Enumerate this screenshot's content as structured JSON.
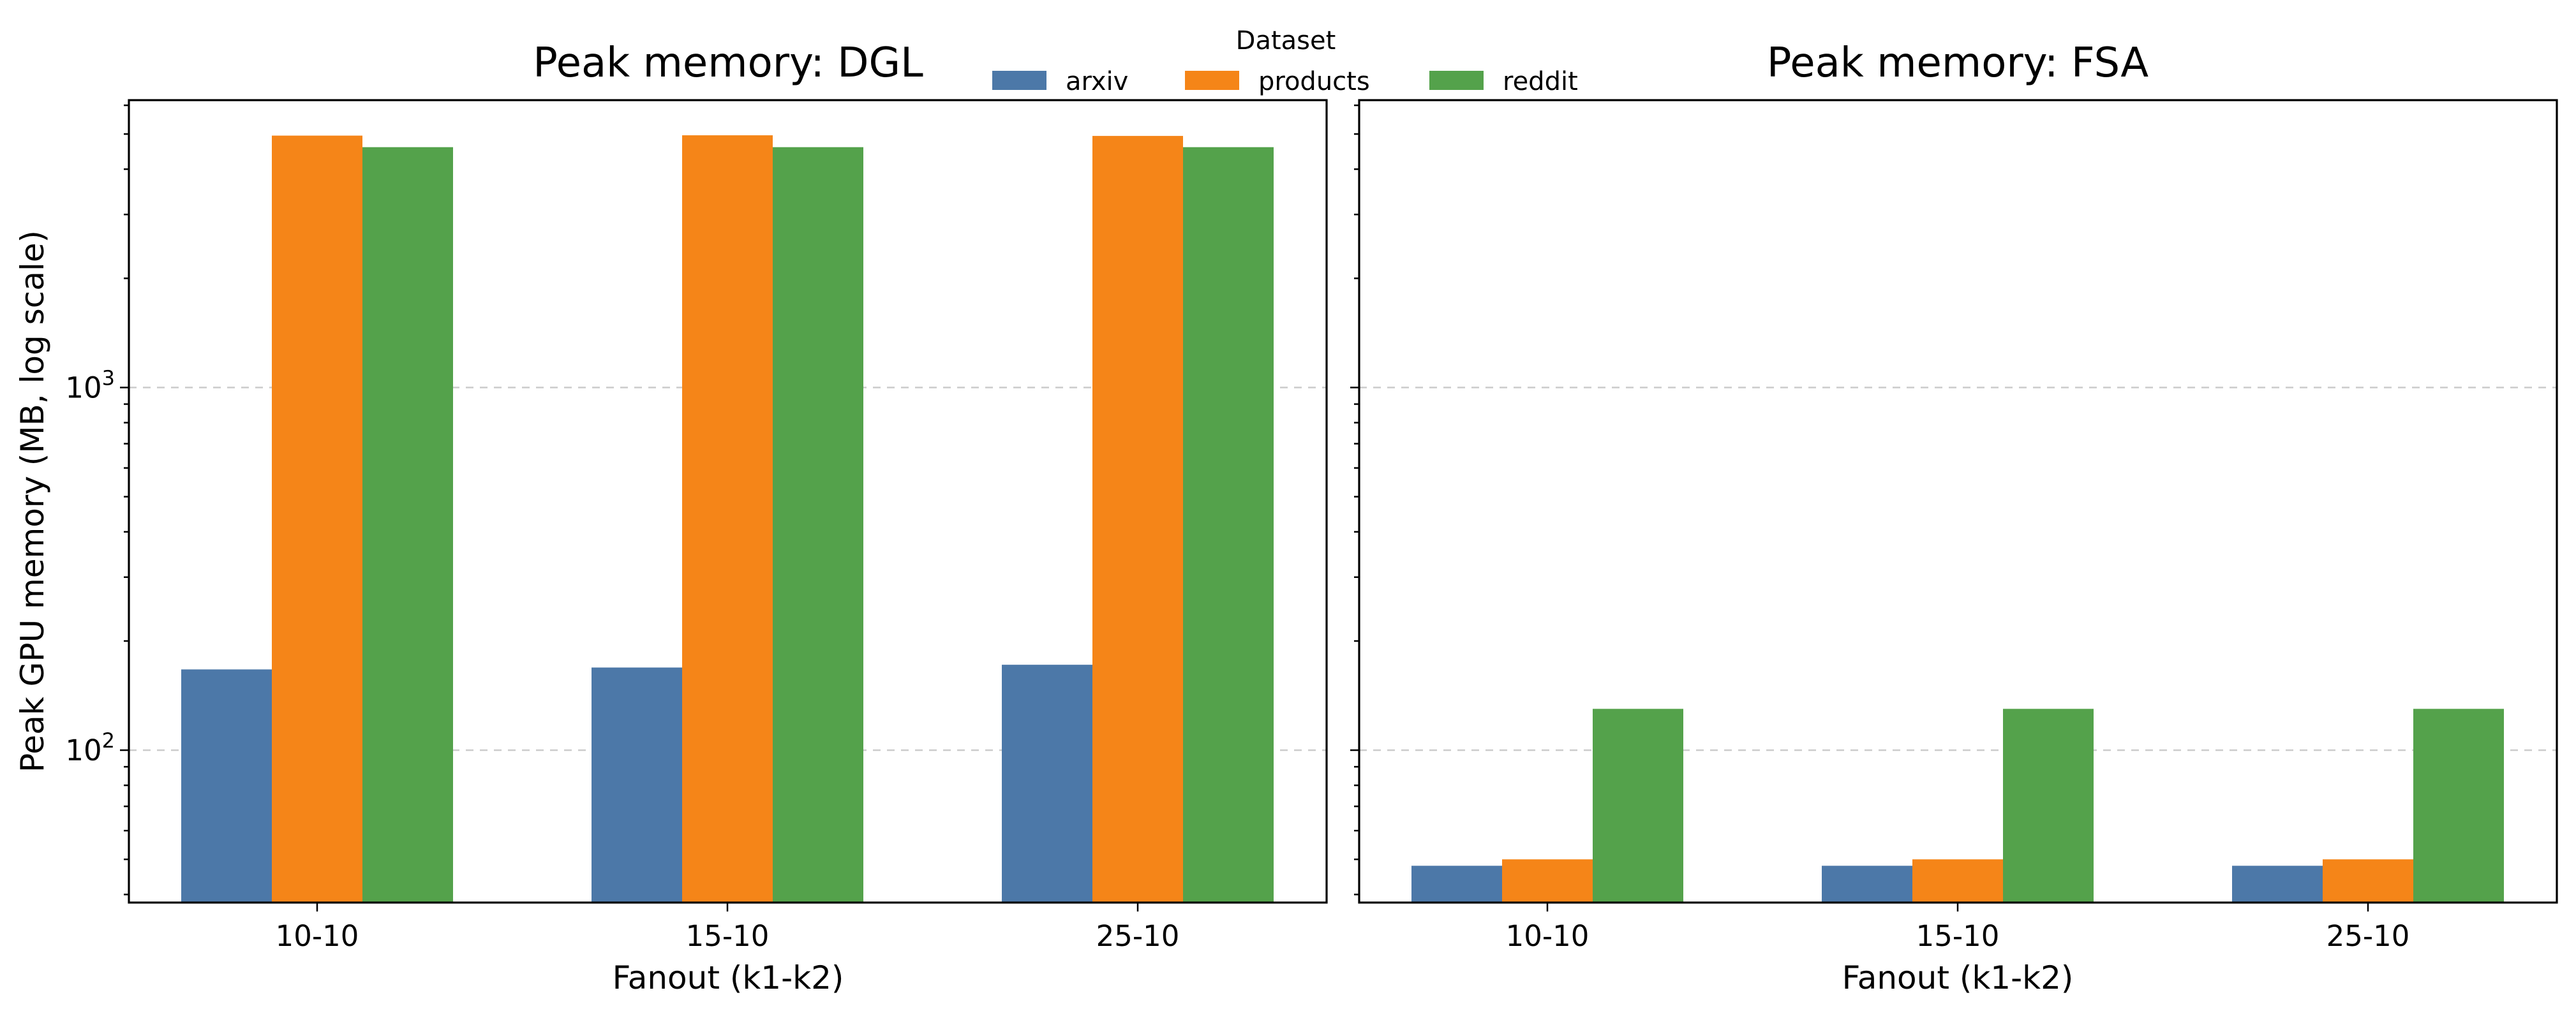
{
  "chart_data": [
    {
      "type": "bar",
      "title": "Peak memory: DGL",
      "xlabel": "Fanout (k1-k2)",
      "ylabel": "Peak GPU memory (MB, log scale)",
      "yscale": "log",
      "ylim": [
        38,
        6200
      ],
      "yticks": [
        {
          "value": 100,
          "base": "10",
          "exp": "2"
        },
        {
          "value": 1000,
          "base": "10",
          "exp": "3"
        }
      ],
      "grid": true,
      "categories": [
        "10-10",
        "15-10",
        "25-10"
      ],
      "series": [
        {
          "name": "arxiv",
          "color": "#4c78a8",
          "values": [
            167,
            169,
            172
          ]
        },
        {
          "name": "products",
          "color": "#f58518",
          "values": [
            4950,
            4960,
            4940
          ]
        },
        {
          "name": "reddit",
          "color": "#54a24b",
          "values": [
            4600,
            4600,
            4600
          ]
        }
      ]
    },
    {
      "type": "bar",
      "title": "Peak memory: FSA",
      "xlabel": "Fanout (k1-k2)",
      "ylabel": "",
      "yscale": "log",
      "ylim": [
        38,
        6200
      ],
      "yticks": [
        {
          "value": 100,
          "base": "10",
          "exp": "2"
        },
        {
          "value": 1000,
          "base": "10",
          "exp": "3"
        }
      ],
      "grid": true,
      "categories": [
        "10-10",
        "15-10",
        "25-10"
      ],
      "series": [
        {
          "name": "arxiv",
          "color": "#4c78a8",
          "values": [
            48,
            48,
            48
          ]
        },
        {
          "name": "products",
          "color": "#f58518",
          "values": [
            50,
            50,
            50
          ]
        },
        {
          "name": "reddit",
          "color": "#54a24b",
          "values": [
            130,
            130,
            130
          ]
        }
      ]
    }
  ],
  "legend": {
    "title": "Dataset",
    "placement": "top-center",
    "entries": [
      {
        "label": "arxiv",
        "color": "#4c78a8"
      },
      {
        "label": "products",
        "color": "#f58518"
      },
      {
        "label": "reddit",
        "color": "#54a24b"
      }
    ]
  }
}
